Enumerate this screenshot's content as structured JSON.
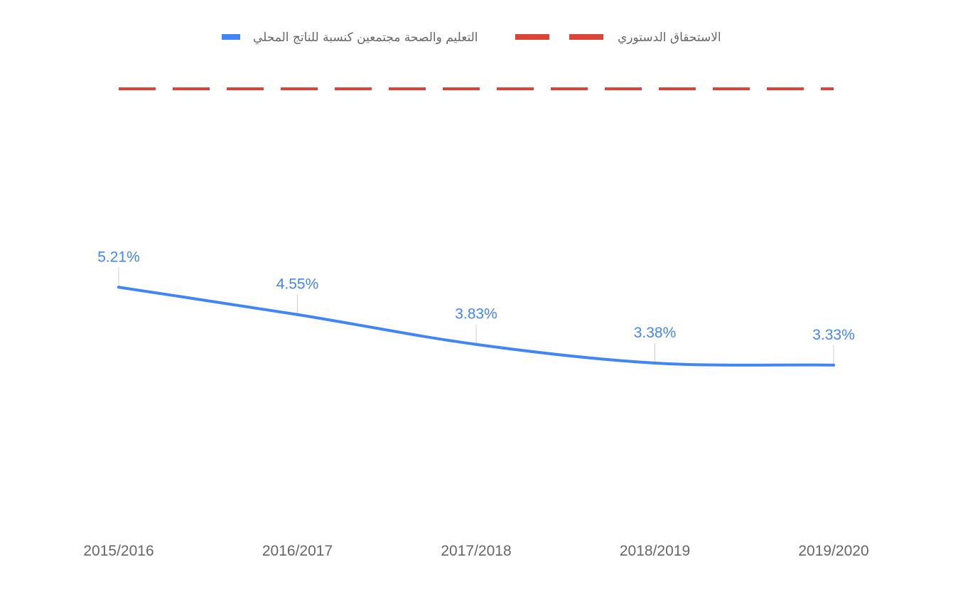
{
  "chart_data": {
    "type": "line",
    "categories": [
      "2015/2016",
      "2016/2017",
      "2017/2018",
      "2018/2019",
      "2019/2020"
    ],
    "series": [
      {
        "name": "التعليم والصحة مجتمعين كنسبة للناتج المحلي",
        "values": [
          5.21,
          4.55,
          3.83,
          3.38,
          3.33
        ],
        "labels": [
          "5.21%",
          "4.55%",
          "3.83%",
          "3.38%",
          "3.33%"
        ],
        "color": "#4285f4",
        "style": "solid-smooth"
      },
      {
        "name": "الاستحقاق الدستوري",
        "value": 10,
        "color": "#db4437",
        "style": "dashed"
      }
    ],
    "ylim": [
      0,
      10.5
    ],
    "grid": false,
    "legend_position": "top",
    "show_y_axis": false
  }
}
